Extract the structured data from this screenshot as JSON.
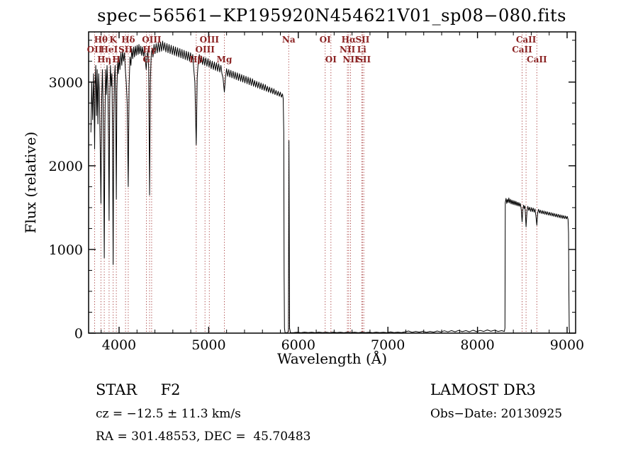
{
  "title": "spec−56561−KP195920N454621V01_sp08−080.fits",
  "footer": {
    "star_line": "STAR     F2",
    "cz_line": "cz = −12.5 ± 11.3 km/s",
    "radec_line": "RA = 301.48553, DEC =  45.70483",
    "survey": "LAMOST DR3",
    "obs_date_line": "Obs−Date: 20130925"
  },
  "chart_data": {
    "type": "line",
    "title": "spec−56561−KP195920N454621V01_sp08−080.fits",
    "xlabel": "Wavelength (Å)",
    "ylabel": "Flux (relative)",
    "xlim": [
      3660,
      9095
    ],
    "ylim": [
      0,
      3600
    ],
    "xticks": [
      4000,
      5000,
      6000,
      7000,
      8000,
      9000
    ],
    "yticks": [
      0,
      1000,
      2000,
      3000
    ],
    "x_minor_step": 200,
    "y_minor_step": 250,
    "grid": false,
    "spectrum_color": "#000000",
    "marker_line_color": "#aa4444",
    "marker_label_color": "#8b2323",
    "spectral_lines": [
      {
        "label": "OII",
        "wavelength": 3727,
        "row": 2
      },
      {
        "label": "Hθ",
        "wavelength": 3798,
        "row": 1
      },
      {
        "label": "Hη",
        "wavelength": 3835,
        "row": 3
      },
      {
        "label": "HeI",
        "wavelength": 3889,
        "row": 2
      },
      {
        "label": "K",
        "wavelength": 3934,
        "row": 1
      },
      {
        "label": "H",
        "wavelength": 3969,
        "row": 3
      },
      {
        "label": "SII",
        "wavelength": 4072,
        "row": 2
      },
      {
        "label": "Hδ",
        "wavelength": 4102,
        "row": 1
      },
      {
        "label": "G",
        "wavelength": 4305,
        "row": 3
      },
      {
        "label": "Hγ",
        "wavelength": 4340,
        "row": 2
      },
      {
        "label": "OIII",
        "wavelength": 4363,
        "row": 1
      },
      {
        "label": "Hβ",
        "wavelength": 4861,
        "row": 3
      },
      {
        "label": "OIII",
        "wavelength": 4959,
        "row": 2
      },
      {
        "label": "OIII",
        "wavelength": 5007,
        "row": 1
      },
      {
        "label": "Mg",
        "wavelength": 5175,
        "row": 3
      },
      {
        "label": "Na",
        "wavelength": 5893,
        "row": 1
      },
      {
        "label": "OI",
        "wavelength": 6300,
        "row": 1
      },
      {
        "label": "OI",
        "wavelength": 6364,
        "row": 3
      },
      {
        "label": "NII",
        "wavelength": 6548,
        "row": 2
      },
      {
        "label": "Hα",
        "wavelength": 6563,
        "row": 1
      },
      {
        "label": "NII",
        "wavelength": 6583,
        "row": 3
      },
      {
        "label": "Li",
        "wavelength": 6708,
        "row": 2
      },
      {
        "label": "SII",
        "wavelength": 6717,
        "row": 1
      },
      {
        "label": "SII",
        "wavelength": 6731,
        "row": 3
      },
      {
        "label": "CaII",
        "wavelength": 8498,
        "row": 2
      },
      {
        "label": "CaII",
        "wavelength": 8542,
        "row": 1
      },
      {
        "label": "CaII",
        "wavelength": 8662,
        "row": 3
      }
    ],
    "spectrum": [
      [
        3685,
        2400
      ],
      [
        3695,
        3000
      ],
      [
        3705,
        2550
      ],
      [
        3715,
        3100
      ],
      [
        3722,
        2700
      ],
      [
        3727,
        2200
      ],
      [
        3733,
        2950
      ],
      [
        3740,
        3200
      ],
      [
        3748,
        2600
      ],
      [
        3756,
        3150
      ],
      [
        3764,
        2500
      ],
      [
        3772,
        3100
      ],
      [
        3780,
        2850
      ],
      [
        3790,
        2200
      ],
      [
        3798,
        1550
      ],
      [
        3806,
        2800
      ],
      [
        3814,
        3150
      ],
      [
        3822,
        2700
      ],
      [
        3828,
        2100
      ],
      [
        3835,
        900
      ],
      [
        3842,
        2500
      ],
      [
        3850,
        3150
      ],
      [
        3858,
        2850
      ],
      [
        3866,
        3200
      ],
      [
        3874,
        2950
      ],
      [
        3882,
        2300
      ],
      [
        3889,
        1350
      ],
      [
        3896,
        2800
      ],
      [
        3904,
        3200
      ],
      [
        3912,
        2950
      ],
      [
        3920,
        3100
      ],
      [
        3927,
        2400
      ],
      [
        3934,
        820
      ],
      [
        3941,
        2500
      ],
      [
        3948,
        3050
      ],
      [
        3956,
        3200
      ],
      [
        3962,
        2700
      ],
      [
        3969,
        1600
      ],
      [
        3976,
        2900
      ],
      [
        3984,
        3250
      ],
      [
        3992,
        3100
      ],
      [
        4000,
        3300
      ],
      [
        4010,
        3150
      ],
      [
        4020,
        3350
      ],
      [
        4030,
        3200
      ],
      [
        4040,
        3380
      ],
      [
        4050,
        3250
      ],
      [
        4060,
        3350
      ],
      [
        4070,
        3150
      ],
      [
        4080,
        3000
      ],
      [
        4090,
        2750
      ],
      [
        4102,
        1750
      ],
      [
        4112,
        2950
      ],
      [
        4122,
        3300
      ],
      [
        4132,
        3200
      ],
      [
        4142,
        3400
      ],
      [
        4152,
        3280
      ],
      [
        4162,
        3420
      ],
      [
        4172,
        3300
      ],
      [
        4182,
        3430
      ],
      [
        4192,
        3320
      ],
      [
        4202,
        3440
      ],
      [
        4212,
        3330
      ],
      [
        4222,
        3450
      ],
      [
        4232,
        3340
      ],
      [
        4242,
        3430
      ],
      [
        4252,
        3320
      ],
      [
        4262,
        3420
      ],
      [
        4272,
        3310
      ],
      [
        4282,
        3400
      ],
      [
        4292,
        3280
      ],
      [
        4302,
        3150
      ],
      [
        4312,
        3300
      ],
      [
        4322,
        3380
      ],
      [
        4331,
        3150
      ],
      [
        4340,
        1650
      ],
      [
        4349,
        3000
      ],
      [
        4358,
        3300
      ],
      [
        4368,
        3400
      ],
      [
        4378,
        3300
      ],
      [
        4390,
        3450
      ],
      [
        4402,
        3340
      ],
      [
        4414,
        3460
      ],
      [
        4426,
        3350
      ],
      [
        4438,
        3470
      ],
      [
        4450,
        3360
      ],
      [
        4462,
        3480
      ],
      [
        4474,
        3370
      ],
      [
        4486,
        3490
      ],
      [
        4498,
        3380
      ],
      [
        4510,
        3470
      ],
      [
        4522,
        3360
      ],
      [
        4534,
        3460
      ],
      [
        4546,
        3350
      ],
      [
        4558,
        3450
      ],
      [
        4570,
        3340
      ],
      [
        4582,
        3440
      ],
      [
        4594,
        3330
      ],
      [
        4606,
        3430
      ],
      [
        4618,
        3320
      ],
      [
        4630,
        3420
      ],
      [
        4642,
        3310
      ],
      [
        4654,
        3410
      ],
      [
        4666,
        3300
      ],
      [
        4678,
        3400
      ],
      [
        4690,
        3290
      ],
      [
        4702,
        3390
      ],
      [
        4714,
        3280
      ],
      [
        4726,
        3380
      ],
      [
        4738,
        3270
      ],
      [
        4750,
        3370
      ],
      [
        4762,
        3260
      ],
      [
        4774,
        3360
      ],
      [
        4786,
        3250
      ],
      [
        4798,
        3350
      ],
      [
        4810,
        3240
      ],
      [
        4822,
        3330
      ],
      [
        4834,
        3150
      ],
      [
        4846,
        3000
      ],
      [
        4861,
        2250
      ],
      [
        4872,
        3050
      ],
      [
        4884,
        3250
      ],
      [
        4896,
        3330
      ],
      [
        4908,
        3230
      ],
      [
        4920,
        3310
      ],
      [
        4932,
        3210
      ],
      [
        4944,
        3300
      ],
      [
        4956,
        3200
      ],
      [
        4968,
        3290
      ],
      [
        4980,
        3190
      ],
      [
        4992,
        3280
      ],
      [
        5004,
        3180
      ],
      [
        5016,
        3260
      ],
      [
        5028,
        3160
      ],
      [
        5040,
        3250
      ],
      [
        5052,
        3150
      ],
      [
        5064,
        3240
      ],
      [
        5076,
        3140
      ],
      [
        5088,
        3230
      ],
      [
        5100,
        3130
      ],
      [
        5112,
        3220
      ],
      [
        5124,
        3120
      ],
      [
        5136,
        3200
      ],
      [
        5148,
        3100
      ],
      [
        5160,
        3050
      ],
      [
        5175,
        2880
      ],
      [
        5188,
        3060
      ],
      [
        5200,
        3160
      ],
      [
        5212,
        3070
      ],
      [
        5224,
        3150
      ],
      [
        5236,
        3060
      ],
      [
        5248,
        3140
      ],
      [
        5260,
        3050
      ],
      [
        5272,
        3130
      ],
      [
        5284,
        3040
      ],
      [
        5296,
        3120
      ],
      [
        5308,
        3030
      ],
      [
        5320,
        3110
      ],
      [
        5332,
        3020
      ],
      [
        5344,
        3100
      ],
      [
        5356,
        3010
      ],
      [
        5368,
        3090
      ],
      [
        5380,
        3000
      ],
      [
        5392,
        3080
      ],
      [
        5404,
        2990
      ],
      [
        5416,
        3070
      ],
      [
        5428,
        2980
      ],
      [
        5440,
        3060
      ],
      [
        5452,
        2970
      ],
      [
        5464,
        3050
      ],
      [
        5476,
        2960
      ],
      [
        5488,
        3040
      ],
      [
        5500,
        2950
      ],
      [
        5512,
        3020
      ],
      [
        5524,
        2940
      ],
      [
        5536,
        3010
      ],
      [
        5548,
        2930
      ],
      [
        5560,
        3000
      ],
      [
        5572,
        2920
      ],
      [
        5584,
        2990
      ],
      [
        5596,
        2910
      ],
      [
        5608,
        2980
      ],
      [
        5620,
        2900
      ],
      [
        5632,
        2970
      ],
      [
        5644,
        2890
      ],
      [
        5656,
        2950
      ],
      [
        5668,
        2880
      ],
      [
        5680,
        2940
      ],
      [
        5692,
        2870
      ],
      [
        5704,
        2930
      ],
      [
        5716,
        2860
      ],
      [
        5728,
        2920
      ],
      [
        5740,
        2850
      ],
      [
        5752,
        2900
      ],
      [
        5764,
        2840
      ],
      [
        5776,
        2890
      ],
      [
        5788,
        2830
      ],
      [
        5800,
        2880
      ],
      [
        5812,
        2820
      ],
      [
        5824,
        2860
      ],
      [
        5832,
        2800
      ],
      [
        5838,
        2400
      ],
      [
        5842,
        700
      ],
      [
        5846,
        60
      ],
      [
        5852,
        8
      ],
      [
        5862,
        4
      ],
      [
        5872,
        6
      ],
      [
        5882,
        5
      ],
      [
        5890,
        40
      ],
      [
        5896,
        2300
      ],
      [
        5899,
        1400
      ],
      [
        5903,
        60
      ],
      [
        5912,
        8
      ],
      [
        5925,
        4
      ],
      [
        5950,
        6
      ],
      [
        5990,
        10
      ],
      [
        6030,
        5
      ],
      [
        6070,
        12
      ],
      [
        6110,
        6
      ],
      [
        6150,
        10
      ],
      [
        6190,
        5
      ],
      [
        6230,
        12
      ],
      [
        6270,
        6
      ],
      [
        6310,
        10
      ],
      [
        6350,
        5
      ],
      [
        6390,
        12
      ],
      [
        6430,
        6
      ],
      [
        6470,
        10
      ],
      [
        6510,
        5
      ],
      [
        6550,
        12
      ],
      [
        6590,
        6
      ],
      [
        6630,
        10
      ],
      [
        6670,
        5
      ],
      [
        6710,
        12
      ],
      [
        6750,
        6
      ],
      [
        6790,
        10
      ],
      [
        6830,
        5
      ],
      [
        6870,
        12
      ],
      [
        6910,
        6
      ],
      [
        6950,
        10
      ],
      [
        6990,
        5
      ],
      [
        7030,
        14
      ],
      [
        7070,
        7
      ],
      [
        7110,
        12
      ],
      [
        7150,
        6
      ],
      [
        7190,
        15
      ],
      [
        7230,
        25
      ],
      [
        7270,
        10
      ],
      [
        7310,
        20
      ],
      [
        7350,
        12
      ],
      [
        7390,
        22
      ],
      [
        7430,
        10
      ],
      [
        7470,
        20
      ],
      [
        7510,
        12
      ],
      [
        7550,
        25
      ],
      [
        7590,
        14
      ],
      [
        7630,
        28
      ],
      [
        7670,
        15
      ],
      [
        7710,
        30
      ],
      [
        7750,
        16
      ],
      [
        7790,
        32
      ],
      [
        7830,
        18
      ],
      [
        7870,
        30
      ],
      [
        7910,
        16
      ],
      [
        7950,
        35
      ],
      [
        7990,
        18
      ],
      [
        8030,
        32
      ],
      [
        8070,
        20
      ],
      [
        8110,
        38
      ],
      [
        8150,
        22
      ],
      [
        8190,
        35
      ],
      [
        8230,
        20
      ],
      [
        8270,
        30
      ],
      [
        8300,
        20
      ],
      [
        8306,
        60
      ],
      [
        8310,
        1560
      ],
      [
        8318,
        1610
      ],
      [
        8326,
        1550
      ],
      [
        8334,
        1600
      ],
      [
        8342,
        1560
      ],
      [
        8350,
        1615
      ],
      [
        8358,
        1555
      ],
      [
        8366,
        1600
      ],
      [
        8374,
        1545
      ],
      [
        8382,
        1590
      ],
      [
        8390,
        1540
      ],
      [
        8398,
        1585
      ],
      [
        8406,
        1535
      ],
      [
        8414,
        1580
      ],
      [
        8422,
        1530
      ],
      [
        8430,
        1575
      ],
      [
        8438,
        1525
      ],
      [
        8446,
        1565
      ],
      [
        8454,
        1520
      ],
      [
        8462,
        1560
      ],
      [
        8470,
        1515
      ],
      [
        8478,
        1550
      ],
      [
        8488,
        1480
      ],
      [
        8498,
        1330
      ],
      [
        8506,
        1470
      ],
      [
        8514,
        1530
      ],
      [
        8522,
        1490
      ],
      [
        8530,
        1520
      ],
      [
        8542,
        1270
      ],
      [
        8552,
        1460
      ],
      [
        8562,
        1515
      ],
      [
        8572,
        1465
      ],
      [
        8582,
        1505
      ],
      [
        8592,
        1455
      ],
      [
        8602,
        1500
      ],
      [
        8612,
        1450
      ],
      [
        8622,
        1495
      ],
      [
        8632,
        1445
      ],
      [
        8642,
        1485
      ],
      [
        8652,
        1400
      ],
      [
        8662,
        1290
      ],
      [
        8672,
        1440
      ],
      [
        8682,
        1480
      ],
      [
        8692,
        1435
      ],
      [
        8702,
        1470
      ],
      [
        8712,
        1430
      ],
      [
        8722,
        1465
      ],
      [
        8732,
        1425
      ],
      [
        8742,
        1460
      ],
      [
        8752,
        1420
      ],
      [
        8762,
        1455
      ],
      [
        8772,
        1415
      ],
      [
        8782,
        1450
      ],
      [
        8792,
        1410
      ],
      [
        8802,
        1445
      ],
      [
        8812,
        1405
      ],
      [
        8822,
        1440
      ],
      [
        8832,
        1400
      ],
      [
        8842,
        1435
      ],
      [
        8852,
        1395
      ],
      [
        8862,
        1430
      ],
      [
        8872,
        1390
      ],
      [
        8882,
        1425
      ],
      [
        8892,
        1385
      ],
      [
        8902,
        1420
      ],
      [
        8912,
        1380
      ],
      [
        8922,
        1415
      ],
      [
        8932,
        1375
      ],
      [
        8942,
        1410
      ],
      [
        8952,
        1370
      ],
      [
        8962,
        1405
      ],
      [
        8972,
        1368
      ],
      [
        8982,
        1400
      ],
      [
        8992,
        1365
      ],
      [
        9002,
        1395
      ],
      [
        9010,
        1360
      ],
      [
        9016,
        1200
      ],
      [
        9020,
        500
      ],
      [
        9024,
        60
      ],
      [
        9028,
        6
      ]
    ]
  }
}
